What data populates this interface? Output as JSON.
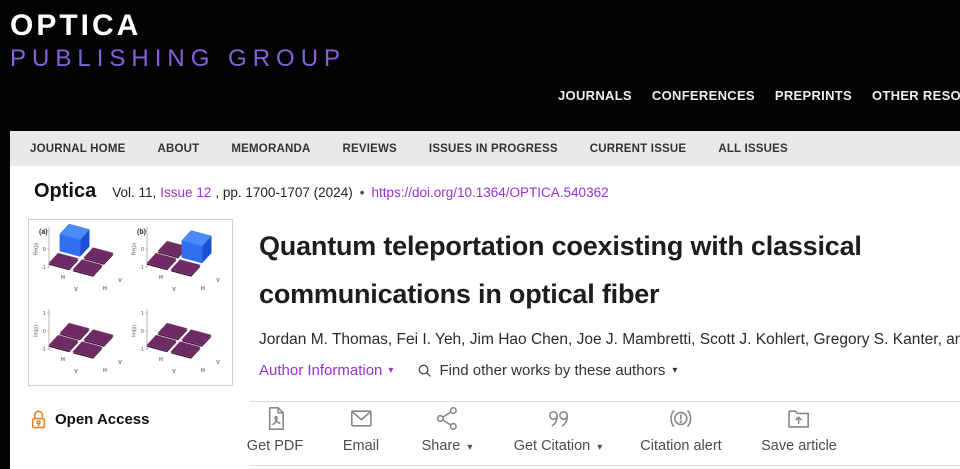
{
  "header": {
    "logo_line1": "OPTICA",
    "logo_line2": "PUBLISHING GROUP",
    "nav": [
      "JOURNALS",
      "CONFERENCES",
      "PREPRINTS",
      "OTHER RESOURCES"
    ]
  },
  "journal_nav": [
    "JOURNAL HOME",
    "ABOUT",
    "MEMORANDA",
    "REVIEWS",
    "ISSUES IN PROGRESS",
    "CURRENT ISSUE",
    "ALL ISSUES"
  ],
  "citation": {
    "journal": "Optica",
    "volume": "Vol. 11,",
    "issue_link": "Issue 12",
    "pages": ", pp. 1700-1707 (2024)",
    "separator": "•",
    "doi_link": "https://doi.org/10.1364/OPTICA.540362"
  },
  "article": {
    "title": "Quantum teleportation coexisting with classical communications in optical fiber",
    "authors": "Jordan M. Thomas, Fei I. Yeh, Jim Hao Chen, Joe J. Mambretti, Scott J. Kohlert, Gregory S. Kanter, an",
    "author_info_label": "Author Information",
    "find_works_label": "Find other works by these authors"
  },
  "open_access": {
    "label": "Open Access"
  },
  "actions": [
    {
      "name": "get-pdf",
      "label": "Get PDF",
      "icon": "pdf-file-icon",
      "dropdown": false
    },
    {
      "name": "email",
      "label": "Email",
      "icon": "envelope-icon",
      "dropdown": false
    },
    {
      "name": "share",
      "label": "Share",
      "icon": "share-nodes-icon",
      "dropdown": true
    },
    {
      "name": "get-citation",
      "label": "Get Citation",
      "icon": "quote-icon",
      "dropdown": true
    },
    {
      "name": "citation-alert",
      "label": "Citation alert",
      "icon": "alert-icon",
      "dropdown": false
    },
    {
      "name": "save-article",
      "label": "Save article",
      "icon": "folder-save-icon",
      "dropdown": false
    }
  ],
  "thumbnail": {
    "description": "2x2 grid of 3D density-matrix bar plots",
    "subplots": [
      {
        "label": "(a)",
        "ylabel": "Re(ρ)",
        "ticks": [
          "1",
          "0",
          "-1"
        ],
        "axis_labels": [
          "H",
          "V",
          "H",
          "V"
        ],
        "blue_cell": "back-left"
      },
      {
        "label": "(b)",
        "ylabel": "Re(ρ)",
        "ticks": [
          "1",
          "0",
          "-1"
        ],
        "axis_labels": [
          "H",
          "V",
          "H",
          "V"
        ],
        "blue_cell": "back-right"
      },
      {
        "label": "",
        "ylabel": "Im(ρ)",
        "ticks": [
          "1",
          "0",
          "-1"
        ],
        "axis_labels": [
          "H",
          "V",
          "H",
          "V"
        ],
        "blue_cell": null
      },
      {
        "label": "",
        "ylabel": "Im(ρ)",
        "ticks": [
          "1",
          "0",
          "-1"
        ],
        "axis_labels": [
          "H",
          "V",
          "H",
          "V"
        ],
        "blue_cell": null
      }
    ]
  },
  "colors": {
    "brand_purple": "#8263d9",
    "link_purple": "#9b30d2",
    "open_access_orange": "#ef8220",
    "bar_blue": "#2e6ff0",
    "tile_purple": "#6e2a62"
  }
}
